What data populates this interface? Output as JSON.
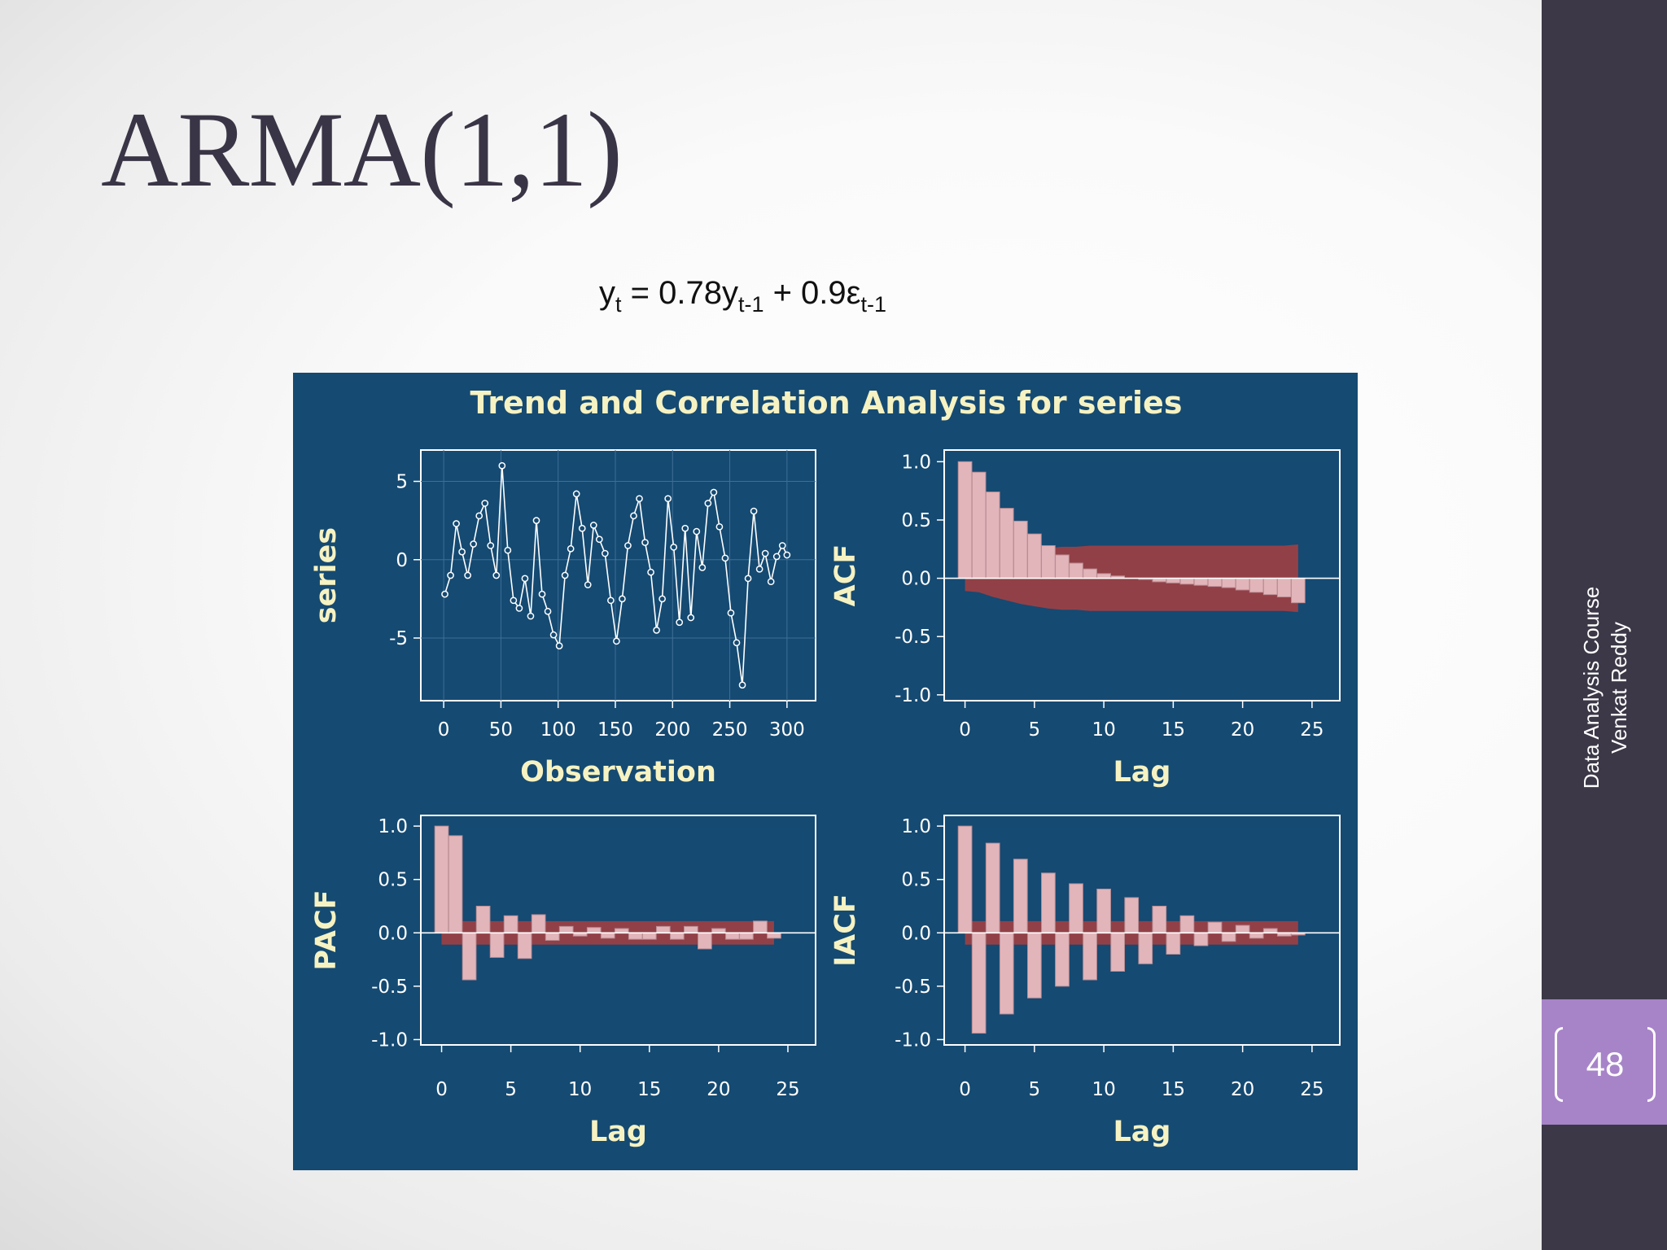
{
  "slide": {
    "title": "ARMA(1,1)",
    "equation": {
      "y": "y",
      "t": "t",
      "mid": " = 0.78y",
      "t1a": "t-1",
      "plus": " + 0.9ε",
      "t1b": "t-1"
    },
    "sidebar_line1": "Data Analysis Course",
    "sidebar_line2": "Venkat Reddy",
    "page_number": "48"
  },
  "colors": {
    "panel_bg": "#154a72",
    "bar_fill": "#e2b5bb",
    "band_fill": "#924047",
    "title_text": "#f6f2c2",
    "sidebar": "#3c3847",
    "page_box": "#a784c8"
  },
  "chart_data": [
    {
      "type": "line",
      "title": "Trend and Correlation Analysis for series",
      "xlabel": "Observation",
      "ylabel": "series",
      "xlim": [
        -20,
        325
      ],
      "ylim": [
        -9,
        7
      ],
      "xticks": [
        0,
        50,
        100,
        150,
        200,
        250,
        300
      ],
      "yticks": [
        5,
        0,
        -5
      ],
      "grid": true,
      "markers": "circle",
      "series_name": "series (approximate, 300 observations)",
      "x": [
        1,
        6,
        11,
        16,
        21,
        26,
        31,
        36,
        41,
        46,
        51,
        56,
        61,
        66,
        71,
        76,
        81,
        86,
        91,
        96,
        101,
        106,
        111,
        116,
        121,
        126,
        131,
        136,
        141,
        146,
        151,
        156,
        161,
        166,
        171,
        176,
        181,
        186,
        191,
        196,
        201,
        206,
        211,
        216,
        221,
        226,
        231,
        236,
        241,
        246,
        251,
        256,
        261,
        266,
        271,
        276,
        281,
        286,
        291,
        296,
        300
      ],
      "values": [
        -2.2,
        -1.0,
        2.3,
        0.5,
        -1.0,
        1.0,
        2.8,
        3.6,
        0.9,
        -1.0,
        6.0,
        0.6,
        -2.6,
        -3.1,
        -1.2,
        -3.6,
        2.5,
        -2.2,
        -3.3,
        -4.8,
        -5.5,
        -1.0,
        0.7,
        4.2,
        2.0,
        -1.6,
        2.2,
        1.3,
        0.4,
        -2.6,
        -5.2,
        -2.5,
        0.9,
        2.8,
        3.9,
        1.1,
        -0.8,
        -4.5,
        -2.5,
        3.9,
        0.8,
        -4.0,
        2.0,
        -3.7,
        1.8,
        -0.5,
        3.6,
        4.3,
        2.1,
        0.1,
        -3.4,
        -5.3,
        -8.0,
        -1.2,
        3.1,
        -0.6,
        0.4,
        -1.4,
        0.2,
        0.9,
        0.3
      ]
    },
    {
      "type": "bar",
      "title": "ACF",
      "xlabel": "Lag",
      "ylabel": "ACF",
      "xlim": [
        -1.5,
        27
      ],
      "ylim": [
        -1.05,
        1.1
      ],
      "xticks": [
        0,
        5,
        10,
        15,
        20,
        25
      ],
      "yticks": [
        1.0,
        0.5,
        0.0,
        -0.5,
        -1.0
      ],
      "yticklabels": [
        "1.0",
        "0.5",
        "0.0",
        "-0.5",
        "-1.0"
      ],
      "lags": [
        0,
        1,
        2,
        3,
        4,
        5,
        6,
        7,
        8,
        9,
        10,
        11,
        12,
        13,
        14,
        15,
        16,
        17,
        18,
        19,
        20,
        21,
        22,
        23,
        24
      ],
      "values": [
        1.0,
        0.91,
        0.74,
        0.6,
        0.49,
        0.38,
        0.28,
        0.2,
        0.13,
        0.08,
        0.04,
        0.02,
        0.0,
        -0.01,
        -0.03,
        -0.04,
        -0.05,
        -0.06,
        -0.07,
        -0.08,
        -0.1,
        -0.12,
        -0.14,
        -0.16,
        -0.21
      ],
      "band_upper": [
        0.11,
        0.12,
        0.16,
        0.19,
        0.22,
        0.24,
        0.26,
        0.27,
        0.27,
        0.28,
        0.28,
        0.28,
        0.28,
        0.28,
        0.28,
        0.28,
        0.28,
        0.28,
        0.28,
        0.28,
        0.28,
        0.28,
        0.28,
        0.28,
        0.29
      ],
      "band_lower": [
        -0.11,
        -0.12,
        -0.16,
        -0.19,
        -0.22,
        -0.24,
        -0.26,
        -0.27,
        -0.27,
        -0.28,
        -0.28,
        -0.28,
        -0.28,
        -0.28,
        -0.28,
        -0.28,
        -0.28,
        -0.28,
        -0.28,
        -0.28,
        -0.28,
        -0.28,
        -0.28,
        -0.28,
        -0.29
      ]
    },
    {
      "type": "bar",
      "title": "PACF",
      "xlabel": "Lag",
      "ylabel": "PACF",
      "xlim": [
        -1.5,
        27
      ],
      "ylim": [
        -1.05,
        1.1
      ],
      "xticks": [
        0,
        5,
        10,
        15,
        20,
        25
      ],
      "yticks": [
        1.0,
        0.5,
        0.0,
        -0.5,
        -1.0
      ],
      "yticklabels": [
        "1.0",
        "0.5",
        "0.0",
        "-0.5",
        "-1.0"
      ],
      "lags": [
        0,
        1,
        2,
        3,
        4,
        5,
        6,
        7,
        8,
        9,
        10,
        11,
        12,
        13,
        14,
        15,
        16,
        17,
        18,
        19,
        20,
        21,
        22,
        23,
        24
      ],
      "values": [
        1.0,
        0.91,
        -0.44,
        0.25,
        -0.23,
        0.16,
        -0.24,
        0.17,
        -0.07,
        0.06,
        -0.03,
        0.05,
        -0.05,
        0.04,
        -0.06,
        -0.06,
        0.06,
        -0.06,
        0.06,
        -0.15,
        0.04,
        -0.06,
        -0.06,
        0.11,
        -0.05
      ],
      "band_upper": [
        0.11,
        0.11,
        0.11,
        0.11,
        0.11,
        0.11,
        0.11,
        0.11,
        0.11,
        0.11,
        0.11,
        0.11,
        0.11,
        0.11,
        0.11,
        0.11,
        0.11,
        0.11,
        0.11,
        0.11,
        0.11,
        0.11,
        0.11,
        0.11,
        0.11
      ],
      "band_lower": [
        -0.11,
        -0.11,
        -0.11,
        -0.11,
        -0.11,
        -0.11,
        -0.11,
        -0.11,
        -0.11,
        -0.11,
        -0.11,
        -0.11,
        -0.11,
        -0.11,
        -0.11,
        -0.11,
        -0.11,
        -0.11,
        -0.11,
        -0.11,
        -0.11,
        -0.11,
        -0.11,
        -0.11,
        -0.11
      ]
    },
    {
      "type": "bar",
      "title": "IACF",
      "xlabel": "Lag",
      "ylabel": "IACF",
      "xlim": [
        -1.5,
        27
      ],
      "ylim": [
        -1.05,
        1.1
      ],
      "xticks": [
        0,
        5,
        10,
        15,
        20,
        25
      ],
      "yticks": [
        1.0,
        0.5,
        0.0,
        -0.5,
        -1.0
      ],
      "yticklabels": [
        "1.0",
        "0.5",
        "0.0",
        "-0.5",
        "-1.0"
      ],
      "lags": [
        0,
        1,
        2,
        3,
        4,
        5,
        6,
        7,
        8,
        9,
        10,
        11,
        12,
        13,
        14,
        15,
        16,
        17,
        18,
        19,
        20,
        21,
        22,
        23,
        24
      ],
      "values": [
        1.0,
        -0.94,
        0.84,
        -0.76,
        0.69,
        -0.61,
        0.56,
        -0.5,
        0.46,
        -0.44,
        0.41,
        -0.36,
        0.33,
        -0.29,
        0.25,
        -0.2,
        0.16,
        -0.12,
        0.1,
        -0.08,
        0.07,
        -0.05,
        0.04,
        -0.03,
        -0.02
      ],
      "band_upper": [
        0.11,
        0.11,
        0.11,
        0.11,
        0.11,
        0.11,
        0.11,
        0.11,
        0.11,
        0.11,
        0.11,
        0.11,
        0.11,
        0.11,
        0.11,
        0.11,
        0.11,
        0.11,
        0.11,
        0.11,
        0.11,
        0.11,
        0.11,
        0.11,
        0.11
      ],
      "band_lower": [
        -0.11,
        -0.11,
        -0.11,
        -0.11,
        -0.11,
        -0.11,
        -0.11,
        -0.11,
        -0.11,
        -0.11,
        -0.11,
        -0.11,
        -0.11,
        -0.11,
        -0.11,
        -0.11,
        -0.11,
        -0.11,
        -0.11,
        -0.11,
        -0.11,
        -0.11,
        -0.11,
        -0.11,
        -0.11
      ]
    }
  ]
}
